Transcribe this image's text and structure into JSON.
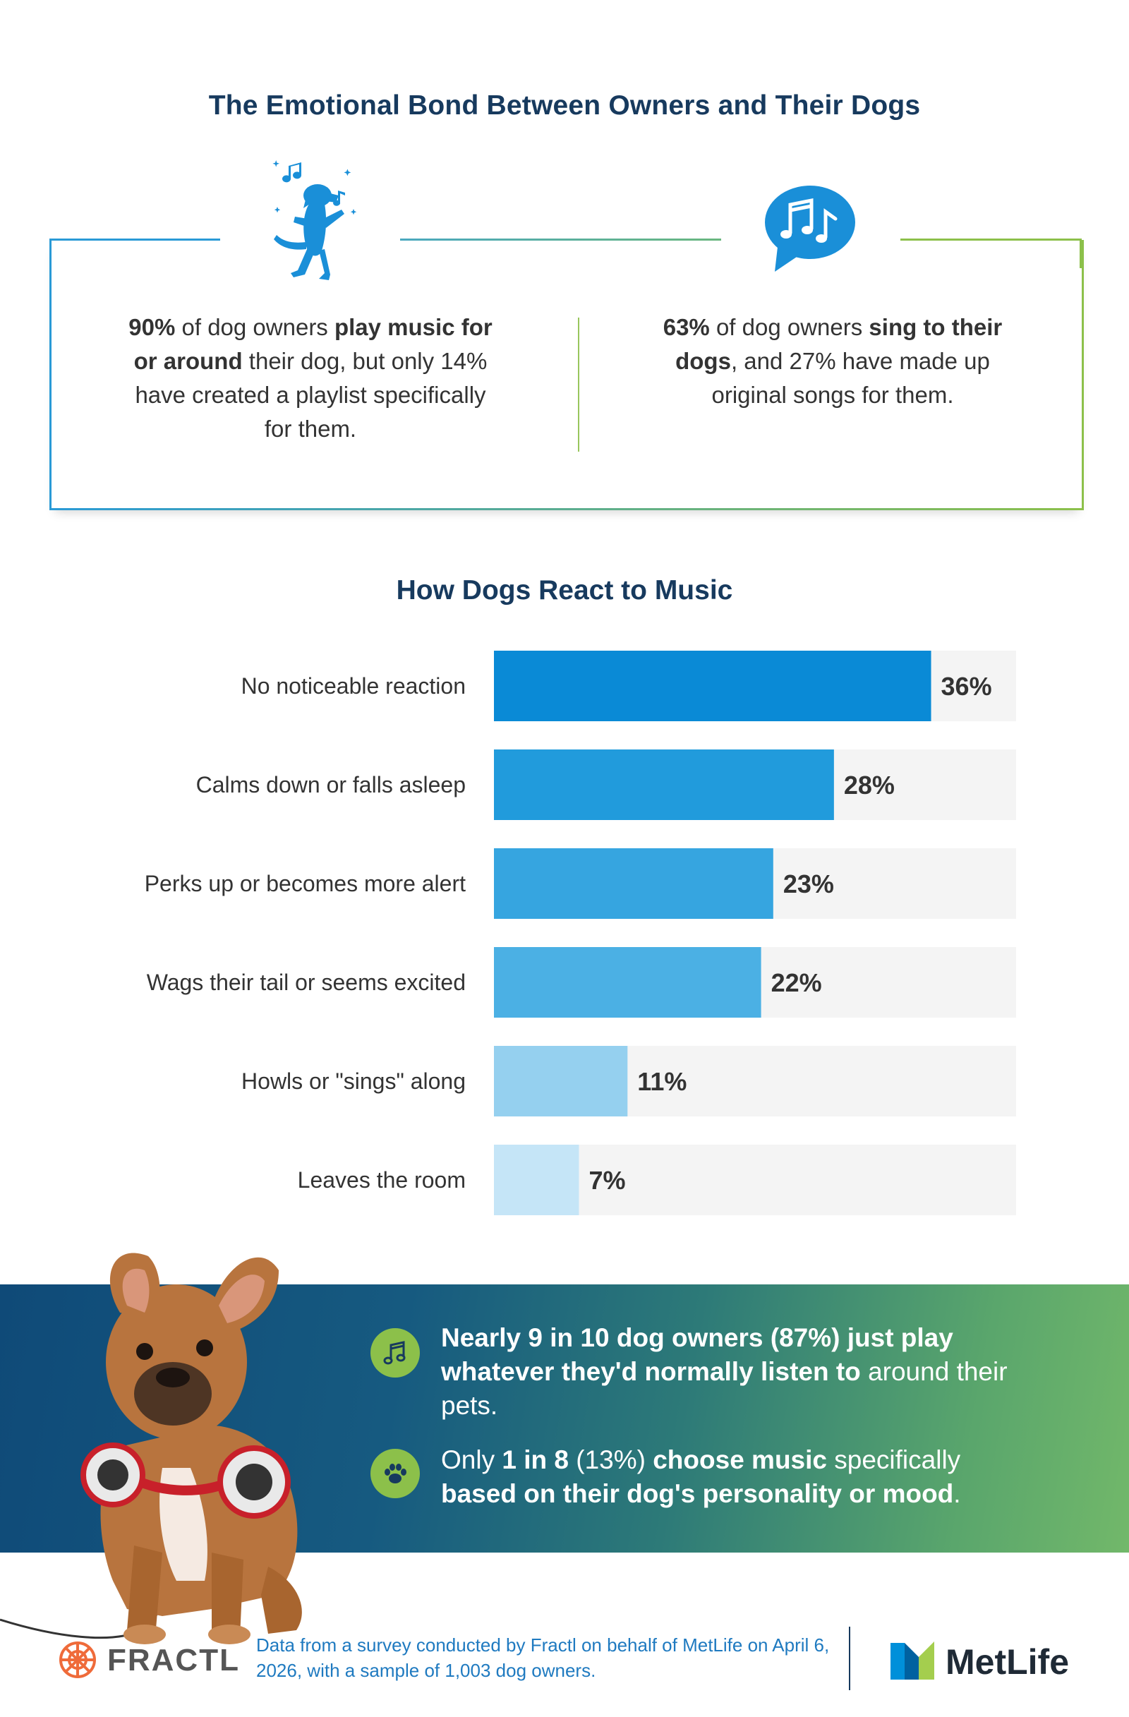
{
  "title": "The Emotional Bond Between Owners and Their Dogs",
  "stats": {
    "left": {
      "pct": "90%",
      "t1": " of dog owners ",
      "bold": "play music for or around",
      "t2": " their dog, but only 14% have created a playlist specifically for them."
    },
    "right": {
      "pct": "63%",
      "t1": " of dog owners ",
      "bold": "sing to their dogs",
      "t2": ", and 27% have made up original songs for them."
    }
  },
  "chart_title": "How Dogs React to Music",
  "chart_data": {
    "type": "bar",
    "orientation": "horizontal",
    "title": "How Dogs React to Music",
    "categories": [
      "No noticeable reaction",
      "Calms down or falls asleep",
      "Perks up or becomes more alert",
      "Wags their tail or seems excited",
      "Howls or \"sings\" along",
      "Leaves the room"
    ],
    "values": [
      36,
      28,
      23,
      22,
      11,
      7
    ],
    "value_labels": [
      "36%",
      "28%",
      "23%",
      "22%",
      "11%",
      "7%"
    ],
    "xlim": [
      0,
      43
    ],
    "colors": [
      "#0a8ad6",
      "#219bdc",
      "#36a5e0",
      "#4bb0e4",
      "#95d0ef",
      "#c5e5f7"
    ],
    "track_color": "#f4f4f4",
    "grid": false
  },
  "banner": {
    "item1": {
      "icon": "music-note-icon",
      "bold": "Nearly 9 in 10 dog owners (87%) just play whatever they'd normally listen to",
      "text": " around their pets."
    },
    "item2": {
      "icon": "paw-icon",
      "t1": "Only ",
      "b1": "1 in 8",
      "t2": " (13%) ",
      "b2": "choose music",
      "t3": " specifically ",
      "b3": "based on their dog's personality or mood",
      "t4": "."
    }
  },
  "footer": {
    "fractl": "FRACTL",
    "note": "Data from a survey conducted by Fractl on behalf of MetLife on April 6, 2026, with a sample of 1,003 dog owners.",
    "metlife": "MetLife"
  },
  "colors": {
    "navy": "#173a5e",
    "blue": "#2a9ad6",
    "green": "#8cc04a",
    "fractl_orange": "#ef6b3a"
  }
}
